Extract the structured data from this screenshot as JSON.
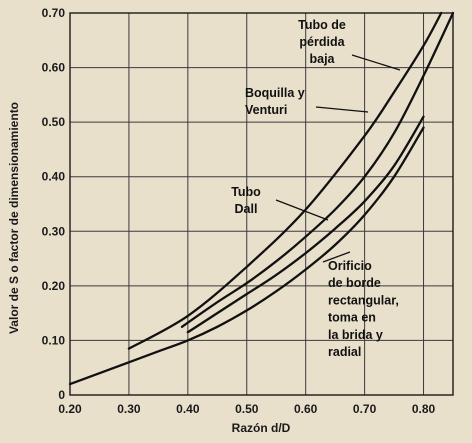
{
  "chart_data": {
    "type": "line",
    "xlabel": "Razón d/D",
    "ylabel": "Valor de S o factor de dimensionamiento",
    "xlim": [
      0.2,
      0.85
    ],
    "ylim": [
      0,
      0.7
    ],
    "x_ticks": [
      "0.20",
      "0.30",
      "0.40",
      "0.50",
      "0.60",
      "0.70",
      "0.80"
    ],
    "y_ticks": [
      "0",
      "0.10",
      "0.20",
      "0.30",
      "0.40",
      "0.50",
      "0.60",
      "0.70"
    ],
    "grid": true,
    "series": [
      {
        "name": "Tubo de pérdida baja",
        "x": [
          0.3,
          0.4,
          0.5,
          0.6,
          0.7,
          0.75,
          0.8,
          0.83
        ],
        "y": [
          0.085,
          0.145,
          0.235,
          0.34,
          0.475,
          0.555,
          0.64,
          0.7
        ]
      },
      {
        "name": "Boquilla y Venturi",
        "x": [
          0.39,
          0.45,
          0.5,
          0.55,
          0.6,
          0.65,
          0.7,
          0.75,
          0.8,
          0.85
        ],
        "y": [
          0.125,
          0.17,
          0.205,
          0.245,
          0.29,
          0.34,
          0.4,
          0.48,
          0.585,
          0.7
        ]
      },
      {
        "name": "Tubo Dall",
        "x": [
          0.4,
          0.45,
          0.5,
          0.55,
          0.6,
          0.65,
          0.7,
          0.75,
          0.8
        ],
        "y": [
          0.115,
          0.15,
          0.185,
          0.22,
          0.26,
          0.305,
          0.355,
          0.42,
          0.51
        ]
      },
      {
        "name": "Orificio de borde rectangular, toma en la brida y radial",
        "x": [
          0.2,
          0.25,
          0.3,
          0.35,
          0.4,
          0.45,
          0.5,
          0.55,
          0.6,
          0.65,
          0.7,
          0.75,
          0.8
        ],
        "y": [
          0.02,
          0.04,
          0.06,
          0.08,
          0.1,
          0.125,
          0.155,
          0.19,
          0.23,
          0.275,
          0.33,
          0.4,
          0.49
        ]
      }
    ],
    "annotations": [
      {
        "lines": [
          "Tubo de",
          "pérdida",
          "baja"
        ]
      },
      {
        "lines": [
          "Boquilla y",
          "Venturi"
        ]
      },
      {
        "lines": [
          "Tubo",
          "Dall"
        ]
      },
      {
        "lines": [
          "Orificio",
          "de borde",
          "rectangular,",
          "toma en",
          "la brida y",
          "radial"
        ]
      }
    ]
  }
}
